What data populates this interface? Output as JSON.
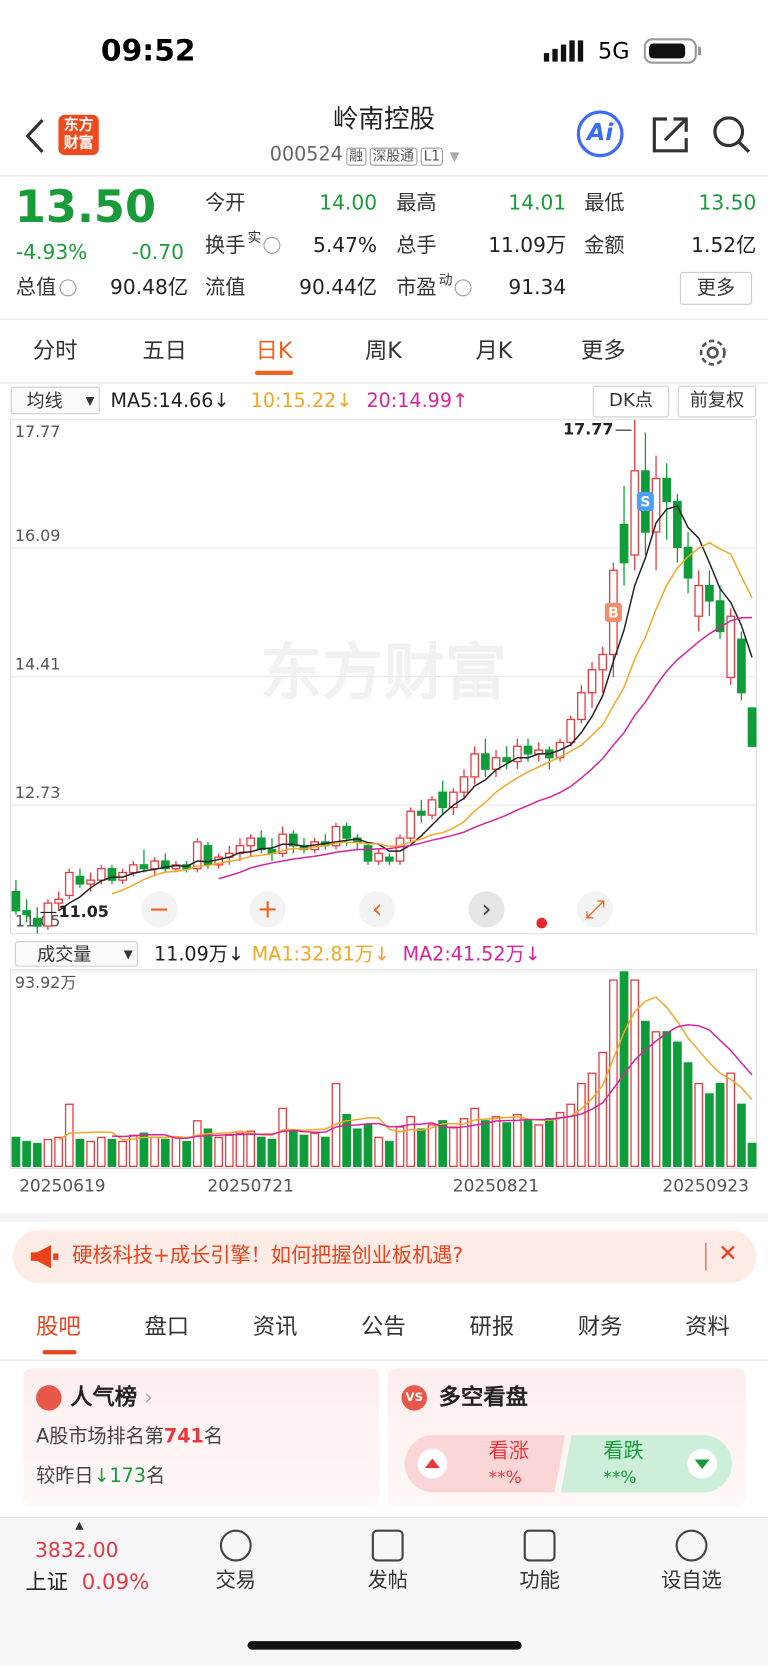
{
  "status_bar": {
    "time": "09:52",
    "network": "5G"
  },
  "header": {
    "logo": "东方财富",
    "title": "岭南控股",
    "code": "000524",
    "tags": [
      "融",
      "深股通",
      "L1"
    ],
    "ai": "Ai"
  },
  "quote": {
    "price": "13.50",
    "change_pct": "-4.93%",
    "change": "-0.70",
    "color": "#1a9b3a",
    "fields": [
      [
        {
          "label": "今开",
          "value": "14.00",
          "color": "#1a9b3a"
        },
        {
          "label": "最高",
          "value": "14.01",
          "color": "#1a9b3a"
        },
        {
          "label": "最低",
          "value": "13.50",
          "color": "#1a9b3a"
        }
      ],
      [
        {
          "label": "换手",
          "sup": "实",
          "value": "5.47%"
        },
        {
          "label": "总手",
          "value": "11.09万"
        },
        {
          "label": "金额",
          "value": "1.52亿"
        }
      ],
      [
        {
          "label": "总值",
          "value": "90.48亿"
        },
        {
          "label": "流值",
          "value": "90.44亿"
        },
        {
          "label": "市盈",
          "sup": "动",
          "value": "91.34"
        }
      ]
    ],
    "more": "更多"
  },
  "period_tabs": [
    "分时",
    "五日",
    "日K",
    "周K",
    "月K",
    "更多"
  ],
  "active_period": 2,
  "ma_bar": {
    "selector": "均线",
    "ma5": "MA5:14.66↓",
    "ma10": "10:15.22↓",
    "ma20": "20:14.99↑",
    "dk": "DK点",
    "adjust": "前复权"
  },
  "kline": {
    "type": "candlestick",
    "watermark": "东方财富",
    "up_color": "#e8383d",
    "down_color": "#0f9d3a",
    "ma_colors": [
      "#222222",
      "#f5a623",
      "#d6249f"
    ],
    "ylim": [
      11.05,
      17.77
    ],
    "yticks": [
      17.77,
      16.09,
      14.41,
      12.73,
      11.05
    ],
    "high_label": "17.77",
    "low_label": "11.05",
    "trade_marks": [
      {
        "label": "B",
        "candle": 56
      },
      {
        "label": "S",
        "candle": 59
      }
    ],
    "categories": [
      "20250619",
      null,
      null,
      null,
      null,
      null,
      null,
      null,
      null,
      null,
      null,
      null,
      null,
      null,
      null,
      null,
      null,
      null,
      null,
      null,
      null,
      null,
      "20250721",
      null,
      null,
      null,
      null,
      null,
      null,
      null,
      null,
      null,
      null,
      null,
      null,
      null,
      null,
      null,
      null,
      null,
      null,
      null,
      null,
      null,
      null,
      "20250821",
      null,
      null,
      null,
      null,
      null,
      null,
      null,
      null,
      null,
      null,
      null,
      null,
      null,
      null,
      null,
      null,
      null,
      null,
      null,
      null,
      null,
      null,
      "20250923",
      null
    ],
    "candles": [
      [
        11.6,
        11.75,
        11.3,
        11.35
      ],
      [
        11.35,
        11.5,
        11.2,
        11.3
      ],
      [
        11.25,
        11.4,
        11.05,
        11.15
      ],
      [
        11.15,
        11.5,
        11.1,
        11.45
      ],
      [
        11.45,
        11.6,
        11.35,
        11.5
      ],
      [
        11.55,
        11.9,
        11.5,
        11.85
      ],
      [
        11.8,
        11.9,
        11.65,
        11.7
      ],
      [
        11.7,
        11.85,
        11.6,
        11.75
      ],
      [
        11.75,
        11.95,
        11.7,
        11.9
      ],
      [
        11.9,
        11.95,
        11.7,
        11.75
      ],
      [
        11.75,
        11.9,
        11.7,
        11.85
      ],
      [
        11.85,
        12.0,
        11.8,
        11.95
      ],
      [
        11.95,
        12.15,
        11.85,
        11.9
      ],
      [
        11.9,
        12.05,
        11.8,
        12.0
      ],
      [
        12.0,
        12.1,
        11.85,
        11.9
      ],
      [
        11.9,
        12.0,
        11.85,
        11.95
      ],
      [
        11.95,
        12.0,
        11.85,
        11.9
      ],
      [
        11.9,
        12.3,
        11.85,
        12.25
      ],
      [
        12.2,
        12.25,
        11.9,
        11.95
      ],
      [
        11.95,
        12.1,
        11.9,
        12.05
      ],
      [
        12.05,
        12.2,
        11.95,
        12.1
      ],
      [
        12.1,
        12.3,
        12.0,
        12.2
      ],
      [
        12.2,
        12.35,
        12.05,
        12.3
      ],
      [
        12.3,
        12.4,
        12.1,
        12.15
      ],
      [
        12.15,
        12.3,
        12.0,
        12.1
      ],
      [
        12.1,
        12.45,
        12.05,
        12.35
      ],
      [
        12.35,
        12.4,
        12.1,
        12.2
      ],
      [
        12.2,
        12.3,
        12.1,
        12.15
      ],
      [
        12.15,
        12.3,
        12.1,
        12.25
      ],
      [
        12.25,
        12.35,
        12.15,
        12.2
      ],
      [
        12.2,
        12.5,
        12.15,
        12.45
      ],
      [
        12.45,
        12.5,
        12.2,
        12.3
      ],
      [
        12.3,
        12.35,
        12.15,
        12.25
      ],
      [
        12.2,
        12.25,
        11.95,
        12.0
      ],
      [
        12.0,
        12.15,
        11.95,
        12.1
      ],
      [
        12.05,
        12.1,
        11.95,
        12.0
      ],
      [
        12.0,
        12.35,
        11.95,
        12.3
      ],
      [
        12.3,
        12.7,
        12.25,
        12.65
      ],
      [
        12.65,
        12.8,
        12.5,
        12.6
      ],
      [
        12.6,
        12.85,
        12.55,
        12.8
      ],
      [
        12.9,
        13.05,
        12.6,
        12.7
      ],
      [
        12.7,
        12.95,
        12.6,
        12.9
      ],
      [
        12.9,
        13.2,
        12.8,
        13.1
      ],
      [
        13.1,
        13.5,
        13.0,
        13.4
      ],
      [
        13.4,
        13.6,
        13.1,
        13.2
      ],
      [
        13.2,
        13.45,
        13.1,
        13.35
      ],
      [
        13.35,
        13.5,
        13.2,
        13.3
      ],
      [
        13.3,
        13.6,
        13.2,
        13.5
      ],
      [
        13.5,
        13.6,
        13.3,
        13.4
      ],
      [
        13.4,
        13.55,
        13.3,
        13.45
      ],
      [
        13.45,
        13.5,
        13.2,
        13.35
      ],
      [
        13.35,
        13.6,
        13.3,
        13.55
      ],
      [
        13.55,
        13.9,
        13.5,
        13.85
      ],
      [
        13.85,
        14.3,
        13.8,
        14.2
      ],
      [
        14.2,
        14.6,
        14.0,
        14.5
      ],
      [
        14.5,
        14.8,
        14.2,
        14.7
      ],
      [
        14.7,
        15.9,
        14.4,
        15.8
      ],
      [
        16.4,
        16.9,
        15.6,
        15.9
      ],
      [
        16.0,
        17.77,
        15.8,
        17.1
      ],
      [
        17.1,
        17.6,
        16.0,
        16.3
      ],
      [
        16.3,
        17.3,
        15.8,
        17.0
      ],
      [
        17.0,
        17.2,
        16.2,
        16.7
      ],
      [
        16.7,
        16.8,
        15.9,
        16.1
      ],
      [
        16.1,
        16.3,
        15.5,
        15.7
      ],
      [
        15.2,
        15.8,
        15.0,
        15.6
      ],
      [
        15.6,
        15.8,
        15.2,
        15.4
      ],
      [
        15.4,
        15.6,
        14.9,
        15.0
      ],
      [
        14.4,
        15.3,
        14.3,
        15.2
      ],
      [
        14.9,
        15.0,
        14.1,
        14.2
      ],
      [
        14.0,
        14.01,
        13.5,
        13.5
      ]
    ]
  },
  "volume": {
    "selector": "成交量",
    "current": "11.09万↓",
    "ma1": "MA1:32.81万↓",
    "ma2": "MA2:41.52万↓",
    "ylim": [
      0,
      93.92
    ],
    "yticks": [
      {
        "value": 93.92,
        "label": "93.92万"
      }
    ],
    "values": [
      14,
      12,
      11,
      13,
      14,
      30,
      13,
      12,
      14,
      13,
      12,
      15,
      16,
      14,
      13,
      14,
      12,
      22,
      18,
      14,
      15,
      16,
      17,
      14,
      13,
      28,
      17,
      15,
      16,
      14,
      40,
      25,
      18,
      20,
      14,
      12,
      19,
      24,
      18,
      20,
      22,
      19,
      23,
      28,
      22,
      24,
      21,
      25,
      22,
      20,
      23,
      26,
      30,
      40,
      45,
      55,
      90,
      93.92,
      90,
      70,
      65,
      65,
      60,
      50,
      40,
      35,
      40,
      45,
      30,
      11.09
    ]
  },
  "banner": {
    "text": "硬核科技+成长引擎！如何把握创业板机遇?"
  },
  "info_tabs": [
    "股吧",
    "盘口",
    "资讯",
    "公告",
    "研报",
    "财务",
    "资料"
  ],
  "popularity": {
    "title": "人气榜",
    "rank_prefix": "A股市场排名第",
    "rank": "741",
    "rank_suffix": "名",
    "change_prefix": "较昨日",
    "change": "173",
    "change_suffix": "名"
  },
  "sentiment": {
    "title": "多空看盘",
    "bull": "看涨",
    "bull_value": "**%",
    "bear": "看跌",
    "bear_value": "**%"
  },
  "bottom_bar": {
    "index_value": "3832.00",
    "index_name": "上证",
    "index_change": "0.09%",
    "items": [
      "交易",
      "发帖",
      "功能",
      "设自选"
    ]
  }
}
